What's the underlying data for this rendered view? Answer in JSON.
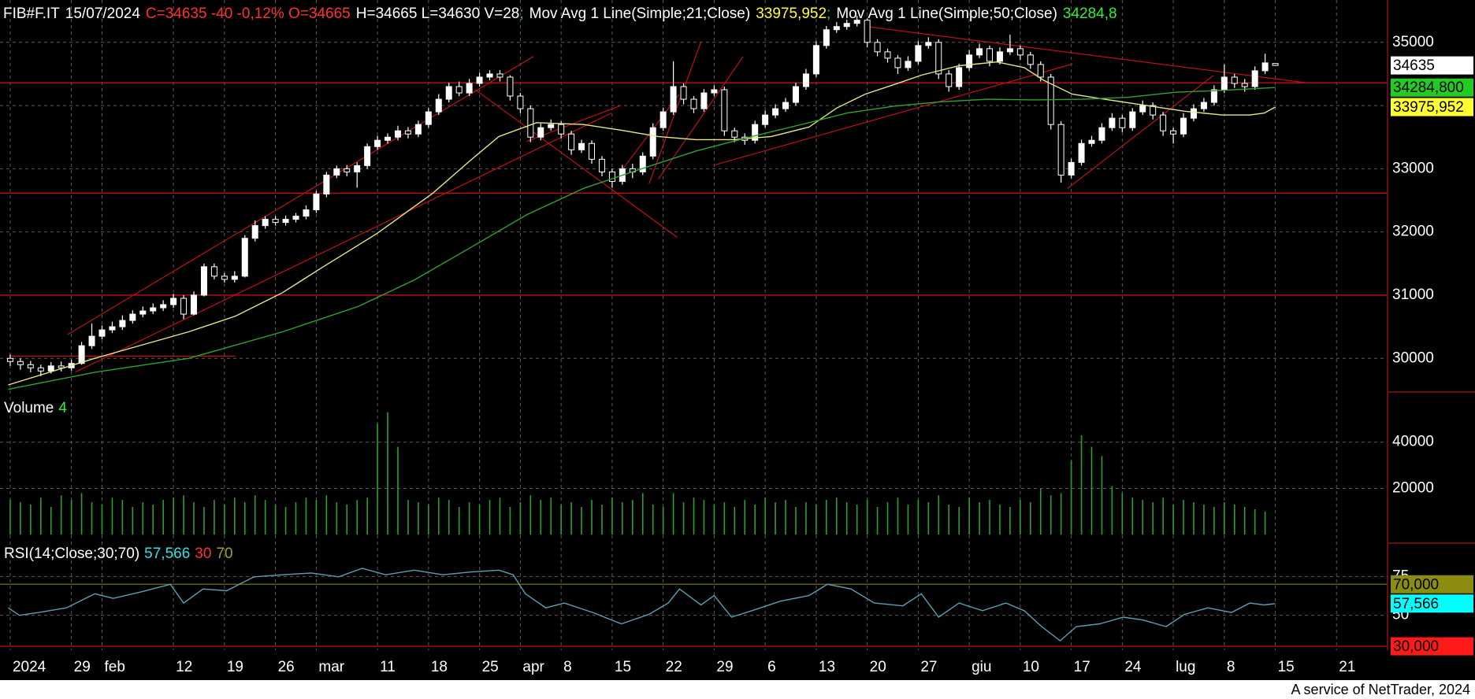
{
  "chart_data": [
    {
      "type": "candlestick",
      "symbol": "FIB#F.IT",
      "date": "15/07/2024",
      "quote": "C=34635 -40 -0,12% O=34665",
      "range": "H=34665 L=34630 V=28",
      "separator": ";",
      "color": "#ffffff",
      "open": [
        30000,
        29950,
        29900,
        29850,
        29800,
        29880,
        29850,
        29920,
        30200,
        30350,
        30450,
        30500,
        30600,
        30700,
        30750,
        30800,
        30850,
        30950,
        30700,
        31000,
        31450,
        31300,
        31250,
        31300,
        31900,
        32100,
        32200,
        32150,
        32200,
        32250,
        32350,
        32600,
        32900,
        33000,
        32950,
        33050,
        33350,
        33450,
        33500,
        33600,
        33550,
        33700,
        33900,
        34100,
        34300,
        34200,
        34350,
        34450,
        34500,
        34450,
        34150,
        33950,
        33500,
        33650,
        33700,
        33550,
        33300,
        33400,
        33150,
        32950,
        32800,
        33000,
        32950,
        33200,
        33650,
        33900,
        34300,
        34100,
        33950,
        34200,
        34250,
        33600,
        33500,
        33450,
        33700,
        33850,
        33950,
        34050,
        34300,
        34500,
        34950,
        35200,
        35250,
        35300,
        35350,
        35000,
        34850,
        34750,
        34600,
        34700,
        34950,
        35000,
        34500,
        34300,
        34600,
        34800,
        34900,
        34700,
        34850,
        34900,
        34800,
        34650,
        34450,
        33700,
        32900,
        33100,
        33400,
        33450,
        33650,
        33800,
        33650,
        33900,
        34000,
        33850,
        33600,
        33550,
        33800,
        33950,
        34050,
        34250,
        34450,
        34350,
        34300,
        34550,
        34665
      ],
      "high": [
        30060,
        30000,
        29960,
        29900,
        29940,
        29950,
        29980,
        30260,
        30550,
        30520,
        30580,
        30680,
        30760,
        30820,
        30870,
        30920,
        31020,
        31000,
        31060,
        31500,
        31500,
        31350,
        31380,
        31950,
        32180,
        32250,
        32250,
        32260,
        32300,
        32420,
        32650,
        32950,
        33050,
        33060,
        33100,
        33400,
        33520,
        33560,
        33680,
        33660,
        33760,
        33960,
        34180,
        34360,
        34380,
        34420,
        34520,
        34560,
        34560,
        34480,
        34200,
        34000,
        33720,
        33780,
        33750,
        33600,
        33460,
        33450,
        33200,
        33000,
        33060,
        33080,
        33260,
        33720,
        33960,
        34700,
        34350,
        34150,
        34260,
        34320,
        34300,
        33650,
        33560,
        33760,
        33920,
        34020,
        34120,
        34360,
        34580,
        35020,
        35260,
        35320,
        35360,
        35420,
        35380,
        35050,
        34900,
        34800,
        34780,
        35020,
        35080,
        35050,
        34560,
        34660,
        34880,
        34980,
        34950,
        34920,
        35120,
        34950,
        34850,
        34700,
        34500,
        33750,
        33160,
        33460,
        33520,
        33720,
        33880,
        33850,
        33960,
        34080,
        34050,
        33900,
        33650,
        33880,
        34020,
        34120,
        34320,
        34650,
        34500,
        34420,
        34620,
        34820,
        34665
      ],
      "low": [
        29880,
        29820,
        29780,
        29720,
        29760,
        29790,
        29800,
        29900,
        30150,
        30300,
        30400,
        30450,
        30550,
        30650,
        30700,
        30750,
        30800,
        30620,
        30680,
        30980,
        31250,
        31200,
        31200,
        31280,
        31850,
        32050,
        32100,
        32100,
        32150,
        32200,
        32300,
        32550,
        32850,
        32880,
        32700,
        33000,
        33300,
        33400,
        33450,
        33480,
        33500,
        33650,
        33850,
        34050,
        34150,
        34150,
        34300,
        34400,
        34380,
        34080,
        33880,
        33420,
        33450,
        33600,
        33480,
        33220,
        33250,
        33080,
        32880,
        32700,
        32750,
        32850,
        32900,
        33150,
        33600,
        33850,
        34020,
        33880,
        33900,
        34150,
        33520,
        33420,
        33380,
        33400,
        33650,
        33800,
        33900,
        34000,
        34250,
        34450,
        34900,
        35150,
        35200,
        35250,
        34920,
        34780,
        34680,
        34500,
        34550,
        34650,
        34900,
        34420,
        34220,
        34250,
        34550,
        34750,
        34620,
        34650,
        34800,
        34720,
        34580,
        34380,
        33620,
        32780,
        32850,
        33050,
        33350,
        33400,
        33600,
        33580,
        33600,
        33850,
        33780,
        33520,
        33400,
        33500,
        33750,
        33900,
        34000,
        34200,
        34280,
        34220,
        34250,
        34500,
        34630
      ],
      "close": [
        29950,
        29900,
        29850,
        29800,
        29880,
        29850,
        29920,
        30200,
        30350,
        30450,
        30500,
        30600,
        30700,
        30750,
        30800,
        30850,
        30950,
        30700,
        31000,
        31450,
        31300,
        31250,
        31300,
        31900,
        32100,
        32200,
        32150,
        32200,
        32250,
        32350,
        32600,
        32900,
        33000,
        32950,
        33050,
        33350,
        33450,
        33500,
        33600,
        33550,
        33700,
        33900,
        34100,
        34300,
        34200,
        34350,
        34450,
        34500,
        34450,
        34150,
        33950,
        33500,
        33650,
        33700,
        33550,
        33300,
        33400,
        33150,
        32950,
        32800,
        33000,
        32950,
        33200,
        33650,
        33900,
        34300,
        34100,
        33950,
        34200,
        34250,
        33600,
        33500,
        33450,
        33700,
        33850,
        33950,
        34050,
        34300,
        34500,
        34950,
        35200,
        35250,
        35300,
        35350,
        35000,
        34850,
        34750,
        34600,
        34700,
        34950,
        35000,
        34500,
        34300,
        34600,
        34800,
        34900,
        34700,
        34850,
        34900,
        34800,
        34650,
        34450,
        33700,
        32900,
        33100,
        33400,
        33450,
        33650,
        33800,
        33650,
        33900,
        34000,
        33850,
        33600,
        33550,
        33800,
        33950,
        34050,
        34250,
        34450,
        34350,
        34300,
        34550,
        34675,
        34635
      ],
      "series": [
        {
          "name": "Mov Avg 1 Line(Simple;21;Close)",
          "color": "#e8e58a",
          "header_label": "33975,952",
          "box_label": "33975,952",
          "box_color": "#ffff33",
          "x": [
            -0.2,
            8.3,
            17.5,
            22.1,
            26.7,
            30.4,
            35.9,
            41.4,
            45.1,
            47.9,
            51.6,
            56.2,
            59.9,
            63.5,
            67.2,
            70.9,
            74.6,
            78.3,
            81,
            83.8,
            86.6,
            89.3,
            93,
            96.7,
            99.4,
            101.3,
            104.1,
            107.7,
            111.4,
            115.1,
            118.8,
            121.5,
            122.9,
            124
          ],
          "values": [
            29580,
            30000,
            30420,
            30670,
            31040,
            31420,
            31970,
            32610,
            33130,
            33510,
            33730,
            33700,
            33610,
            33510,
            33460,
            33460,
            33510,
            33660,
            33960,
            34180,
            34330,
            34480,
            34630,
            34690,
            34600,
            34400,
            34180,
            34090,
            34000,
            33910,
            33850,
            33850,
            33880,
            33975.952
          ]
        },
        {
          "name": "Mov Avg 1 Line(Simple;50;Close)",
          "color": "#2fa32f",
          "header_label": "34284,8",
          "box_label": "34284,800",
          "box_color": "#22cc22",
          "x": [
            -0.2,
            8.3,
            17.5,
            26.7,
            34.1,
            39.6,
            45.1,
            50.6,
            56.2,
            61.7,
            67.2,
            72.7,
            78.3,
            82,
            86.6,
            91.2,
            95.8,
            100.4,
            105,
            109.6,
            114.2,
            118.8,
            124
          ],
          "values": [
            29510,
            29780,
            30000,
            30420,
            30820,
            31240,
            31750,
            32270,
            32690,
            32990,
            33280,
            33510,
            33730,
            33880,
            33990,
            34060,
            34100,
            34090,
            34100,
            34130,
            34210,
            34240,
            34284.8
          ]
        }
      ],
      "levels": [
        34360,
        32613,
        31000
      ],
      "level_color": "#c01010",
      "xlim": [
        -1,
        135
      ],
      "xticks": [
        {
          "value": 0,
          "label": "2024"
        },
        {
          "value": 6,
          "label": "29"
        },
        {
          "value": 9,
          "label": "feb"
        },
        {
          "value": 16,
          "label": "12"
        },
        {
          "value": 21,
          "label": "19"
        },
        {
          "value": 26,
          "label": "26"
        },
        {
          "value": 30,
          "label": "mar"
        },
        {
          "value": 36,
          "label": "11"
        },
        {
          "value": 41,
          "label": "18"
        },
        {
          "value": 46,
          "label": "25"
        },
        {
          "value": 50,
          "label": "apr"
        },
        {
          "value": 54,
          "label": "8"
        },
        {
          "value": 59,
          "label": "15"
        },
        {
          "value": 64,
          "label": "22"
        },
        {
          "value": 69,
          "label": "29"
        },
        {
          "value": 74,
          "label": "6"
        },
        {
          "value": 79,
          "label": "13"
        },
        {
          "value": 84,
          "label": "20"
        },
        {
          "value": 89,
          "label": "27"
        },
        {
          "value": 94,
          "label": "giu"
        },
        {
          "value": 99,
          "label": "10"
        },
        {
          "value": 104,
          "label": "17"
        },
        {
          "value": 109,
          "label": "24"
        },
        {
          "value": 114,
          "label": "lug"
        },
        {
          "value": 119,
          "label": "8"
        },
        {
          "value": 124,
          "label": "15"
        },
        {
          "value": 130,
          "label": "21"
        }
      ],
      "ylim": [
        29480,
        35670
      ],
      "yticks": [
        30000,
        31000,
        32000,
        33000,
        34000,
        35000
      ],
      "grid": true
    },
    {
      "type": "bar",
      "name": "Volume",
      "color": "#2e9e2e",
      "values": [
        15000,
        14000,
        13000,
        16000,
        12000,
        17000,
        15000,
        18000,
        14000,
        13000,
        16000,
        15000,
        12000,
        14000,
        13000,
        15000,
        16000,
        17000,
        14000,
        12000,
        15000,
        13000,
        16000,
        14000,
        17000,
        15000,
        13000,
        12000,
        14000,
        16000,
        15000,
        17000,
        14000,
        13000,
        15000,
        16000,
        48000,
        53000,
        38000,
        15000,
        14000,
        13000,
        16000,
        15000,
        12000,
        14000,
        13000,
        15000,
        16000,
        12000,
        14000,
        17000,
        15000,
        16000,
        13000,
        14000,
        12000,
        15000,
        13000,
        16000,
        14000,
        15000,
        18000,
        13000,
        12000,
        18000,
        14000,
        16000,
        15000,
        13000,
        14000,
        12000,
        15000,
        13000,
        16000,
        14000,
        15000,
        12000,
        14000,
        13000,
        15000,
        16000,
        14000,
        13000,
        15000,
        12000,
        14000,
        16000,
        13000,
        15000,
        14000,
        17000,
        13000,
        12000,
        16000,
        14000,
        15000,
        13000,
        12000,
        15000,
        14000,
        20000,
        17000,
        18000,
        32000,
        43000,
        38000,
        34000,
        21000,
        18000,
        16000,
        15000,
        14000,
        16000,
        13000,
        15000,
        14000,
        13000,
        12000,
        14000,
        13000,
        12000,
        11000,
        10000,
        4
      ],
      "ylim": [
        -3000,
        60000
      ],
      "yticks": [
        20000,
        40000
      ]
    },
    {
      "type": "line",
      "name": "RSI(14;Close;30;70)",
      "color": "#5a9fb5",
      "value_label": "57,566",
      "box_color": "#00ffff",
      "x": [
        -0.2,
        0.9,
        2.8,
        5.5,
        8.3,
        10.1,
        12.9,
        15.7,
        17,
        18.9,
        21.2,
        23.9,
        26.7,
        29.5,
        32.2,
        34.5,
        36.8,
        39.6,
        42.4,
        45.1,
        47.9,
        49.3,
        50.5,
        52.5,
        54.3,
        57.1,
        59.9,
        62.6,
        64.5,
        65.6,
        67.7,
        69,
        70.7,
        72.7,
        75.5,
        78.3,
        80.1,
        82.4,
        84.7,
        87.5,
        89.3,
        91,
        93,
        95.3,
        97.6,
        99.4,
        101.1,
        102.9,
        104.5,
        106.8,
        109.1,
        111,
        113.3,
        115.1,
        117.4,
        119.7,
        121.5,
        122.9,
        124
      ],
      "values": [
        54.8,
        50,
        51.8,
        54.8,
        63.9,
        60.9,
        65.2,
        70,
        57.9,
        67,
        65.8,
        74.8,
        76.1,
        77.3,
        74.8,
        80.3,
        76.1,
        79.1,
        76.1,
        77.9,
        79.1,
        76.1,
        63.9,
        54.8,
        57.9,
        51.8,
        44.5,
        50.6,
        57.9,
        67,
        56.7,
        62.7,
        48.8,
        53,
        59.1,
        62.7,
        70,
        67,
        57.9,
        56.1,
        63.9,
        48.8,
        57.9,
        53,
        57.9,
        53,
        42.7,
        33.6,
        42.7,
        44.5,
        48.8,
        47,
        42.7,
        50.6,
        54.8,
        51.8,
        57.9,
        56.7,
        57.566
      ],
      "levels": [
        {
          "value": 30,
          "label": "30,000",
          "color": "#ff1a1a"
        },
        {
          "value": 70,
          "label": "70,000",
          "color": "#8c8c10"
        }
      ],
      "ylim": [
        27.5,
        95.5
      ],
      "yticks": [
        50,
        75
      ]
    }
  ],
  "footer": "A service of NetTrader, 2024"
}
